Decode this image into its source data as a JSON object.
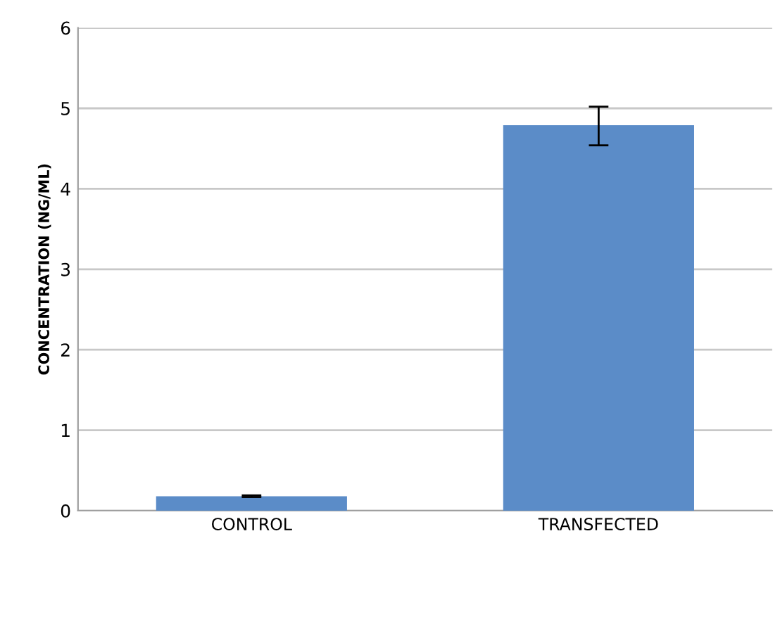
{
  "chart_data": {
    "type": "bar",
    "ylabel": "CONCENTRATION (NG/ML)",
    "categories": [
      "CONTROL",
      "TRANSFECTED"
    ],
    "values": [
      0.18,
      4.79
    ],
    "errors": [
      0.01,
      [
        4.54,
        5.02
      ]
    ],
    "color": "#5b8cc8",
    "ylim": [
      0,
      6
    ],
    "yticks": [
      0,
      1,
      2,
      3,
      4,
      5,
      6
    ],
    "grid": "y"
  }
}
